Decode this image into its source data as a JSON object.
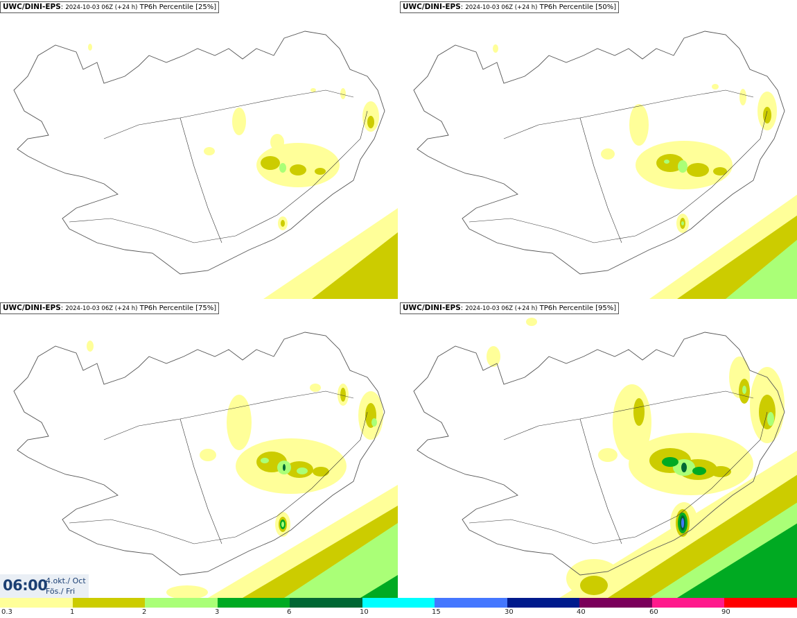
{
  "panels": [
    {
      "model": "UWC/DINI-EPS",
      "sep": ":",
      "run": "2024-10-03 06Z (+24 h)",
      "product": "TP6h Percentile [25%]"
    },
    {
      "model": "UWC/DINI-EPS",
      "sep": ":",
      "run": "2024-10-03 06Z (+24 h)",
      "product": "TP6h Percentile [50%]"
    },
    {
      "model": "UWC/DINI-EPS",
      "sep": ":",
      "run": "2024-10-03 06Z (+24 h)",
      "product": "TP6h Percentile [75%]"
    },
    {
      "model": "UWC/DINI-EPS",
      "sep": ":",
      "run": "2024-10-03 06Z (+24 h)",
      "product": "TP6h Percentile [95%]"
    }
  ],
  "time": {
    "clock": "06:00",
    "date_line1": "4.okt./ Oct",
    "date_line2": "Fös./ Fri"
  },
  "legend": {
    "colors": [
      "#ffff99",
      "#cccc00",
      "#aaff77",
      "#00aa22",
      "#006633",
      "#00ffff",
      "#4477ff",
      "#001a8c",
      "#7a005a",
      "#ff1a8c",
      "#ff0000"
    ],
    "ticks": [
      "0.3",
      "1",
      "2",
      "3",
      "6",
      "10",
      "15",
      "30",
      "40",
      "60",
      "90"
    ]
  },
  "colors": {
    "coast": "#555555",
    "roads": "#333333",
    "lvl1": "#ffff99",
    "lvl2": "#cccc00",
    "lvl3": "#aaff77",
    "lvl4": "#00aa22",
    "lvl5": "#006633"
  }
}
